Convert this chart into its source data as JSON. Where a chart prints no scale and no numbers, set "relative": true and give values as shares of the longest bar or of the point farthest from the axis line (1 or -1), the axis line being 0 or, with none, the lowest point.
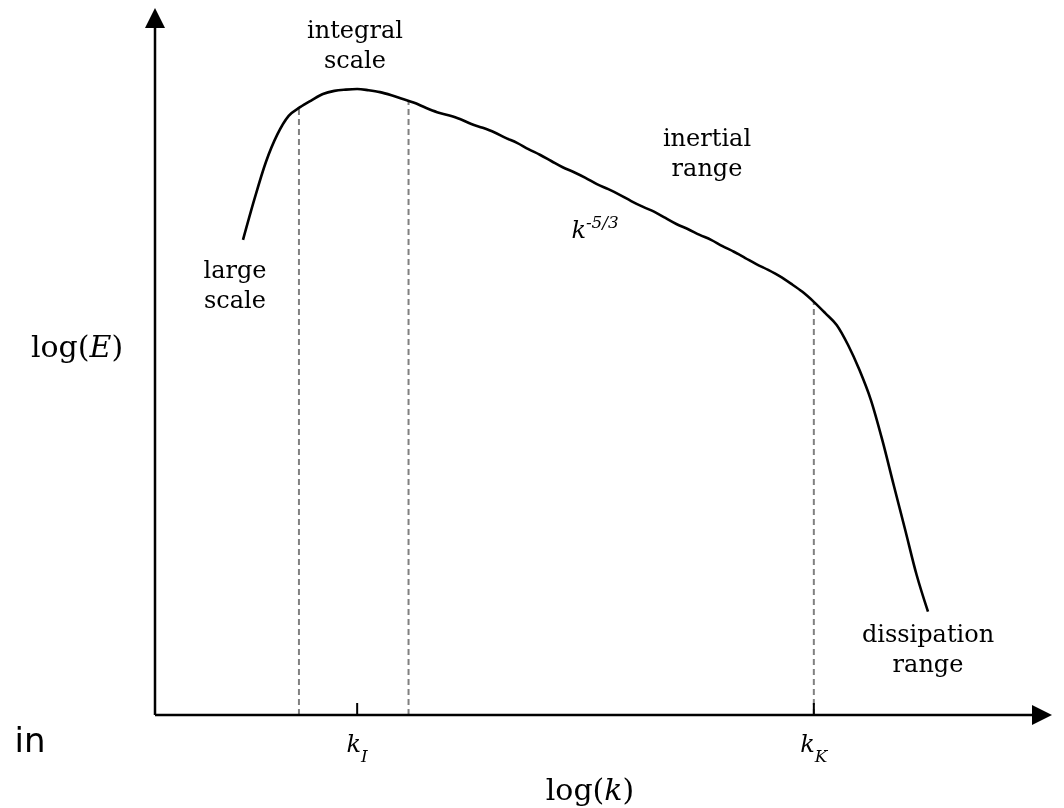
{
  "chart_data": {
    "type": "line",
    "relative": true,
    "xlabel": "log(k)",
    "ylabel": "log(E)",
    "categories": [
      null,
      null,
      null,
      null,
      null,
      null,
      null,
      null,
      null,
      null,
      "k$_{I}$",
      null,
      null,
      null,
      null,
      null,
      null,
      null,
      null,
      null,
      null,
      null,
      null,
      null,
      null,
      null,
      null,
      null,
      null,
      null,
      null,
      null,
      null,
      null,
      null,
      null,
      null,
      null,
      null,
      null,
      null,
      null,
      null,
      null,
      null,
      null,
      null,
      null,
      null,
      null,
      "k$_{K}$",
      null,
      null,
      null,
      null,
      null,
      null,
      null,
      null,
      null,
      null
    ],
    "series": [
      {
        "color": "#000000",
        "values": [
          0.759,
          0.824,
          0.883,
          0.927,
          0.957,
          0.971,
          0.982,
          0.992,
          0.997,
          0.999,
          1.0,
          0.998,
          0.995,
          0.99,
          0.984,
          0.978,
          0.97,
          0.963,
          0.958,
          0.952,
          0.944,
          0.938,
          0.931,
          0.922,
          0.914,
          0.904,
          0.895,
          0.885,
          0.875,
          0.867,
          0.858,
          0.848,
          0.84,
          0.831,
          0.821,
          0.812,
          0.804,
          0.794,
          0.784,
          0.776,
          0.767,
          0.759,
          0.749,
          0.74,
          0.73,
          0.72,
          0.711,
          0.701,
          0.689,
          0.676,
          0.66,
          0.642,
          0.623,
          0.591,
          0.551,
          0.503,
          0.439,
          0.367,
          0.296,
          0.224,
          0.165
        ]
      }
    ],
    "ref_lines": [
      {
        "axis": "x",
        "value": "k$_{K}$",
        "color": "#808080",
        "line_style": "dashed"
      }
    ],
    "annotations": [
      "integral\nscale",
      "large\nscale",
      "inertial\nrange",
      "k$^{-5/3}$",
      "dissipation\nrange",
      "in"
    ],
    "line_style": "solid"
  }
}
